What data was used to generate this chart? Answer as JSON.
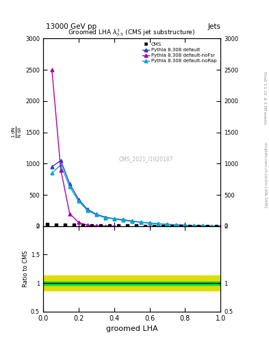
{
  "title_top": "13000 GeV pp",
  "title_top_right": "Jets",
  "plot_title": "Groomed LHA $\\lambda^{1}_{0.5}$ (CMS jet substructure)",
  "watermark": "CMS_2021_I1920187",
  "right_label_top": "Rivet 3.1.10, ≥ 3.3M events",
  "right_label_bottom": "mcplots.cern.ch [arXiv:1306.3436]",
  "xlabel": "groomed LHA",
  "ylabel_main": "1 / $\\mathrm{d}\\sigma$ / $\\mathrm{d}\\lambda$",
  "ylabel_ratio": "Ratio to CMS",
  "cms_x": [
    0.025,
    0.075,
    0.125,
    0.175,
    0.225,
    0.275,
    0.325,
    0.375,
    0.425,
    0.475,
    0.525,
    0.575,
    0.625,
    0.675,
    0.725,
    0.775,
    0.825,
    0.875,
    0.925,
    0.975
  ],
  "cms_y": [
    30,
    25,
    20,
    18,
    15,
    12,
    10,
    8,
    7,
    6,
    5,
    4,
    3,
    2,
    2,
    1,
    1,
    1,
    0.5,
    0.5
  ],
  "pythia_default_x": [
    0.05,
    0.1,
    0.15,
    0.2,
    0.25,
    0.3,
    0.35,
    0.4,
    0.45,
    0.5,
    0.55,
    0.6,
    0.65,
    0.7,
    0.75,
    0.8,
    0.85,
    0.9,
    0.95,
    1.0
  ],
  "pythia_default_y": [
    950,
    1050,
    680,
    430,
    270,
    190,
    145,
    120,
    105,
    82,
    65,
    52,
    40,
    30,
    22,
    16,
    11,
    7,
    4,
    2
  ],
  "pythia_noFsr_x": [
    0.05,
    0.1,
    0.15,
    0.2,
    0.25,
    0.3,
    0.35,
    0.4
  ],
  "pythia_noFsr_y": [
    2500,
    900,
    200,
    60,
    18,
    5,
    2,
    1
  ],
  "pythia_noRap_x": [
    0.05,
    0.1,
    0.15,
    0.2,
    0.25,
    0.3,
    0.35,
    0.4,
    0.45,
    0.5,
    0.55,
    0.6,
    0.65,
    0.7,
    0.75,
    0.8,
    0.85,
    0.9,
    0.95,
    1.0
  ],
  "pythia_noRap_y": [
    850,
    980,
    630,
    400,
    250,
    180,
    135,
    115,
    95,
    75,
    62,
    48,
    38,
    29,
    21,
    15,
    10,
    6,
    3,
    2
  ],
  "color_cms": "#000000",
  "color_default": "#3333cc",
  "color_noFsr": "#aa00aa",
  "color_noRap": "#00aacc",
  "ratio_green_lo": 0.97,
  "ratio_green_hi": 1.03,
  "ratio_yellow_lo": 0.87,
  "ratio_yellow_hi": 1.13,
  "ratio_green_color": "#00dd44",
  "ratio_yellow_color": "#dddd00",
  "ylim_main": [
    0,
    3000
  ],
  "ylim_ratio": [
    0.5,
    2.0
  ],
  "xlim": [
    0.0,
    1.0
  ],
  "yticks_main": [
    0,
    500,
    1000,
    1500,
    2000,
    2500,
    3000
  ],
  "ytick_labels_main": [
    "0",
    "500",
    "1000",
    "1500",
    "2000",
    "2500",
    "3000"
  ]
}
